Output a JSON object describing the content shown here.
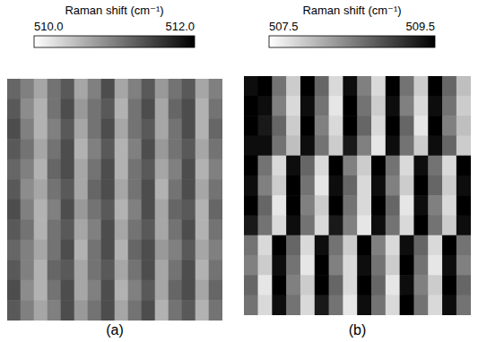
{
  "chart_data": [
    {
      "type": "heatmap",
      "title": "(a)",
      "tick_labels": false,
      "colorbar_label": "Raman shift (cm⁻¹)",
      "colorbar_range": [
        510.0,
        512.0
      ],
      "colorbar_ticks": [
        {
          "value": 510.0,
          "label": "510.0"
        },
        {
          "value": 512.0,
          "label": "512.0"
        }
      ],
      "cells": [
        [
          511.2,
          511.0,
          510.7,
          511.1,
          511.3,
          510.7,
          511.0,
          511.4,
          510.7,
          511.0,
          511.3,
          510.8,
          511.1,
          511.3,
          510.7,
          511.0
        ],
        [
          511.3,
          510.9,
          510.6,
          511.1,
          511.4,
          510.8,
          511.1,
          511.3,
          510.6,
          511.1,
          511.4,
          510.7,
          511.2,
          511.4,
          510.6,
          511.1
        ],
        [
          511.4,
          511.0,
          510.6,
          511.0,
          511.3,
          510.7,
          511.1,
          511.4,
          510.7,
          511.1,
          511.3,
          510.7,
          511.1,
          511.4,
          510.6,
          511.2
        ],
        [
          511.3,
          511.1,
          510.7,
          511.1,
          511.4,
          510.6,
          511.0,
          511.3,
          510.6,
          511.0,
          511.4,
          510.8,
          511.1,
          511.3,
          510.7,
          511.1
        ],
        [
          511.2,
          511.0,
          510.6,
          511.2,
          511.4,
          510.7,
          511.1,
          511.4,
          510.6,
          511.1,
          511.3,
          510.7,
          511.0,
          511.4,
          510.6,
          511.0
        ],
        [
          511.3,
          510.9,
          510.7,
          511.1,
          511.3,
          510.7,
          511.2,
          511.4,
          510.7,
          511.1,
          511.4,
          510.6,
          511.1,
          511.4,
          510.7,
          511.1
        ],
        [
          511.4,
          511.0,
          510.6,
          511.0,
          511.4,
          510.8,
          511.1,
          511.3,
          510.6,
          511.0,
          511.4,
          510.7,
          511.2,
          511.3,
          510.6,
          511.2
        ],
        [
          511.3,
          511.1,
          510.6,
          511.1,
          511.3,
          510.7,
          511.0,
          511.4,
          510.7,
          511.1,
          511.3,
          510.7,
          511.1,
          511.4,
          510.6,
          511.1
        ],
        [
          511.2,
          511.0,
          510.7,
          511.1,
          511.4,
          510.6,
          511.1,
          511.4,
          510.6,
          511.2,
          511.4,
          510.8,
          511.0,
          511.3,
          510.7,
          511.0
        ],
        [
          511.3,
          511.0,
          510.6,
          511.2,
          511.3,
          510.7,
          511.1,
          511.3,
          510.7,
          511.1,
          511.4,
          510.7,
          511.1,
          511.4,
          510.6,
          511.1
        ],
        [
          511.4,
          510.9,
          510.6,
          511.1,
          511.4,
          510.7,
          511.0,
          511.4,
          510.6,
          511.0,
          511.3,
          510.7,
          511.2,
          511.4,
          510.7,
          511.2
        ],
        [
          511.3,
          511.0,
          510.7,
          511.0,
          511.4,
          510.8,
          511.1,
          511.4,
          510.7,
          511.1,
          511.4,
          510.6,
          511.1,
          511.3,
          510.6,
          511.1
        ]
      ]
    },
    {
      "type": "heatmap",
      "title": "(b)",
      "tick_labels": false,
      "colorbar_label": "Raman shift (cm⁻¹)",
      "colorbar_range": [
        507.5,
        509.5
      ],
      "colorbar_ticks": [
        {
          "value": 507.5,
          "label": "507.5"
        },
        {
          "value": 509.5,
          "label": "509.5"
        }
      ],
      "cells": [
        [
          509.4,
          509.5,
          508.6,
          507.9,
          509.5,
          508.7,
          507.8,
          509.4,
          508.5,
          507.8,
          509.5,
          508.6,
          507.9,
          509.5,
          508.7,
          508.0
        ],
        [
          509.5,
          509.4,
          508.5,
          507.8,
          509.4,
          508.6,
          507.7,
          509.5,
          508.6,
          507.9,
          509.4,
          508.5,
          507.8,
          509.4,
          508.6,
          507.9
        ],
        [
          509.5,
          509.3,
          508.7,
          507.9,
          509.5,
          508.5,
          507.8,
          509.5,
          508.7,
          507.8,
          509.5,
          508.7,
          507.7,
          509.5,
          508.5,
          508.0
        ],
        [
          509.4,
          509.4,
          508.6,
          508.0,
          509.4,
          508.6,
          507.9,
          509.3,
          508.5,
          507.7,
          509.4,
          508.6,
          507.9,
          509.4,
          508.7,
          507.9
        ],
        [
          509.5,
          508.6,
          507.8,
          509.4,
          508.7,
          507.8,
          509.5,
          508.5,
          507.9,
          509.5,
          508.6,
          507.8,
          509.4,
          508.6,
          507.8,
          509.5
        ],
        [
          509.4,
          508.5,
          507.9,
          509.5,
          508.6,
          507.7,
          509.4,
          508.7,
          507.8,
          509.4,
          508.5,
          507.9,
          509.5,
          508.7,
          507.9,
          509.4
        ],
        [
          509.5,
          508.7,
          507.7,
          509.5,
          508.5,
          507.9,
          509.5,
          508.6,
          507.8,
          509.5,
          508.7,
          507.7,
          509.4,
          508.5,
          507.8,
          509.5
        ],
        [
          509.3,
          508.6,
          507.8,
          509.4,
          508.6,
          507.8,
          509.3,
          508.5,
          507.7,
          509.4,
          508.6,
          507.8,
          509.5,
          508.6,
          507.9,
          509.4
        ],
        [
          508.6,
          507.8,
          509.5,
          508.7,
          507.8,
          509.4,
          508.6,
          507.9,
          509.5,
          508.5,
          507.8,
          509.4,
          508.7,
          507.8,
          509.5,
          508.6
        ],
        [
          508.5,
          507.9,
          509.4,
          508.6,
          507.7,
          509.5,
          508.5,
          507.8,
          509.4,
          508.6,
          507.9,
          509.5,
          508.6,
          507.7,
          509.4,
          508.5
        ],
        [
          508.7,
          507.7,
          509.5,
          508.5,
          507.9,
          509.5,
          508.7,
          507.8,
          509.5,
          508.7,
          507.7,
          509.4,
          508.5,
          507.9,
          509.5,
          508.7
        ],
        [
          508.6,
          507.8,
          509.4,
          508.6,
          507.8,
          509.3,
          508.6,
          507.7,
          509.4,
          508.6,
          507.8,
          509.5,
          508.6,
          507.8,
          509.4,
          508.6
        ]
      ]
    }
  ]
}
